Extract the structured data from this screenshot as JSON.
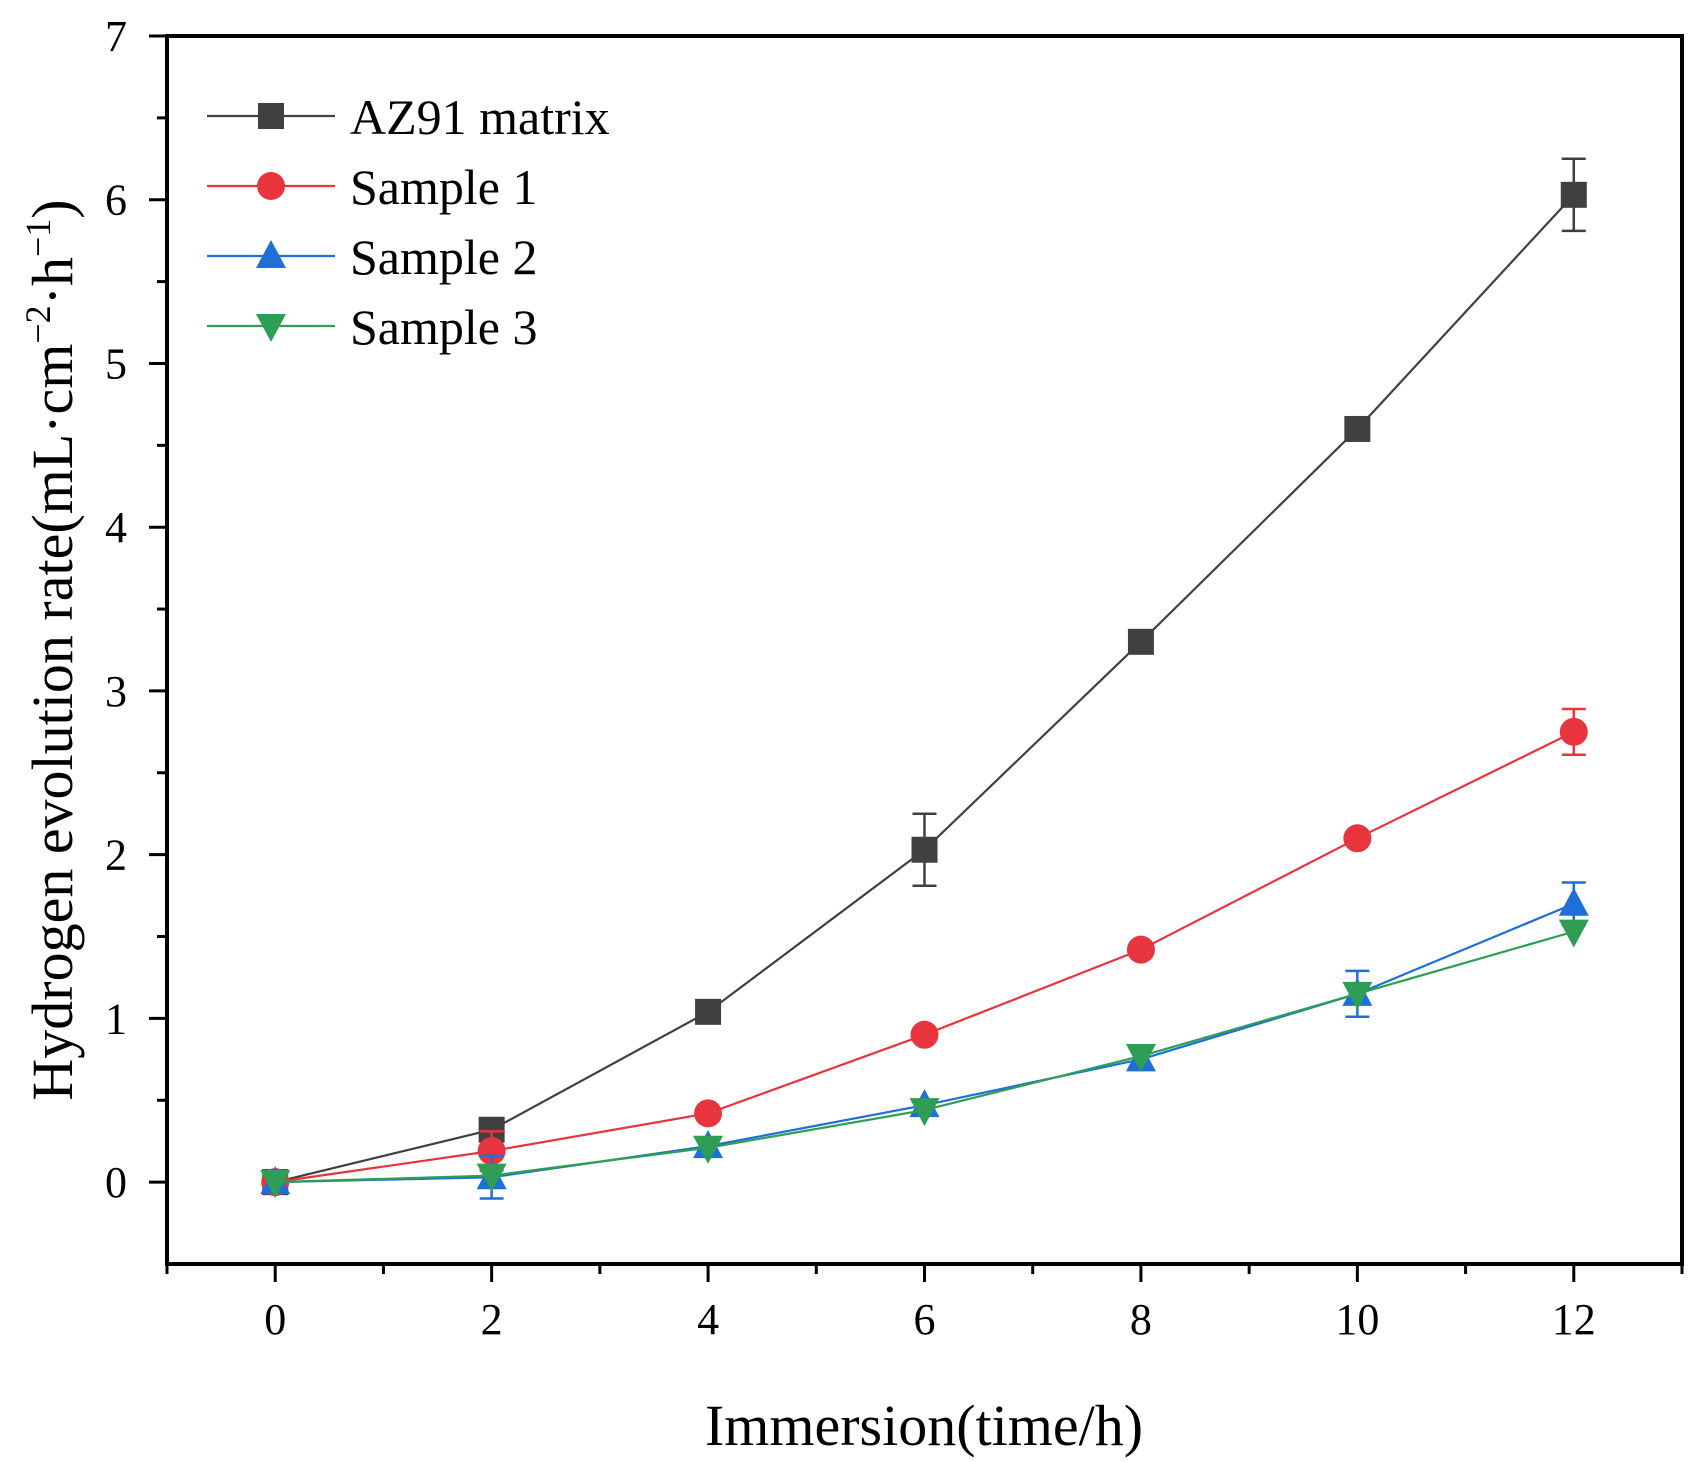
{
  "chart_data": {
    "type": "line",
    "title": "",
    "xlabel": "Immersion(time/h)",
    "ylabel": {
      "main": "Hydrogen evolution rate(mL·cm",
      "sup1": "−2",
      "mid": "·h",
      "sup2": "−1",
      "end": ")"
    },
    "xlim": [
      -1,
      13
    ],
    "ylim": [
      -0.5,
      7
    ],
    "xticks": [
      0,
      2,
      4,
      6,
      8,
      10,
      12
    ],
    "yticks": [
      0,
      1,
      2,
      3,
      4,
      5,
      6,
      7
    ],
    "x": [
      0,
      2,
      4,
      6,
      8,
      10,
      12
    ],
    "legend_position": "top-left",
    "series": [
      {
        "name": "AZ91 matrix",
        "color": "#404040",
        "marker": "square",
        "values": [
          0,
          0.32,
          1.04,
          2.03,
          3.3,
          4.6,
          6.03
        ],
        "errors": [
          0,
          0,
          0,
          0.22,
          0,
          0,
          0.22
        ]
      },
      {
        "name": "Sample 1",
        "color": "#e8343c",
        "marker": "circle",
        "values": [
          0,
          0.19,
          0.42,
          0.9,
          1.42,
          2.1,
          2.75
        ],
        "errors": [
          0,
          0.12,
          0,
          0,
          0,
          0,
          0.14
        ]
      },
      {
        "name": "Sample 2",
        "color": "#1f6fd8",
        "marker": "triangle-up",
        "values": [
          0,
          0.03,
          0.22,
          0.47,
          0.75,
          1.15,
          1.7
        ],
        "errors": [
          0,
          0.13,
          0,
          0,
          0,
          0.14,
          0.13
        ]
      },
      {
        "name": "Sample 3",
        "color": "#2f9e55",
        "marker": "triangle-down",
        "values": [
          0,
          0.04,
          0.21,
          0.44,
          0.77,
          1.15,
          1.53
        ],
        "errors": [
          0,
          0,
          0,
          0,
          0,
          0,
          0
        ]
      }
    ]
  }
}
